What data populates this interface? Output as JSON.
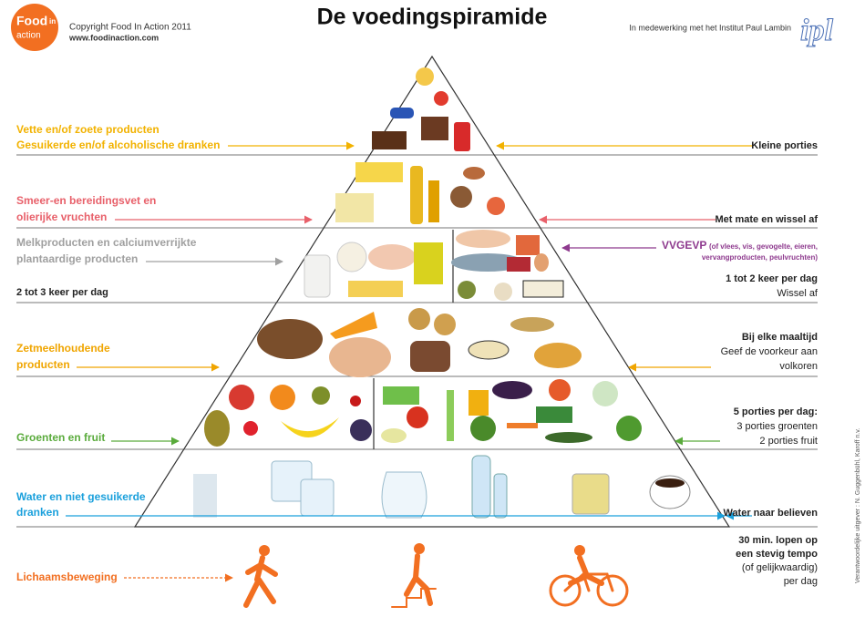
{
  "header": {
    "logo": [
      "Food",
      "in",
      "action"
    ],
    "copyright": "Copyright Food In Action 2011",
    "website": "www.foodinaction.com",
    "title": "De voedingspiramide",
    "partner": "In medewerking met het Institut Paul Lambin",
    "partner_logo": "ipl"
  },
  "levels": [
    {
      "left": [
        "Vette en/of zoete producten",
        "Gesuikerde en/of alcoholische dranken"
      ],
      "right": [
        "Kleine porties"
      ]
    },
    {
      "left": [
        "Smeer-en bereidingsvet en",
        "olierijke vruchten"
      ],
      "right": [
        "Met mate en wissel af"
      ]
    },
    {
      "left": [
        "Melkproducten en calciumverrijkte",
        "plantaardige producten"
      ],
      "left_note": "2 tot 3 keer per dag",
      "right_title": "VVGEVP",
      "right_detail": [
        "(of vlees, vis, gevogelte, eieren,",
        "vervangproducten, peulvruchten)"
      ],
      "right": [
        "1 tot 2 keer per dag",
        "Wissel af"
      ]
    },
    {
      "left": [
        "Zetmeelhoudende",
        "producten"
      ],
      "right": [
        "Bij elke maaltijd",
        "Geef de voorkeur aan",
        "volkoren"
      ]
    },
    {
      "left": [
        "Groenten en fruit"
      ],
      "right": [
        "5 porties per dag:",
        "3 porties groenten",
        "2 porties fruit"
      ]
    },
    {
      "left": [
        "Water en niet gesuikerde",
        "dranken"
      ],
      "right": [
        "Water naar believen"
      ]
    },
    {
      "left": [
        "Lichaamsbeweging"
      ],
      "right": [
        "30 min. lopen op",
        "een stevig tempo",
        "(of gelijkwaardig)",
        "per dag"
      ]
    }
  ],
  "side_note": "Verantwoordelijke uitgever : N. Guggenbühl, Karoff n.v."
}
